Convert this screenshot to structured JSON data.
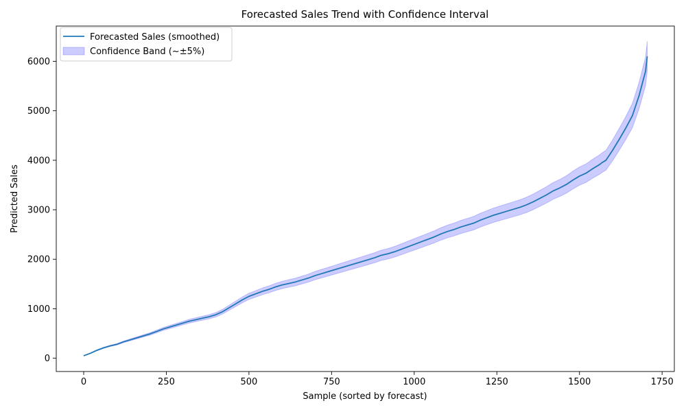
{
  "chart_data": {
    "type": "line",
    "title": "Forecasted Sales Trend with Confidence Interval",
    "xlabel": "Sample (sorted by forecast)",
    "ylabel": "Predicted Sales",
    "xlim": [
      -83,
      1787
    ],
    "ylim": [
      -268,
      6712
    ],
    "xticks": [
      0,
      250,
      500,
      750,
      1000,
      1250,
      1500,
      1750
    ],
    "yticks": [
      0,
      1000,
      2000,
      3000,
      4000,
      5000,
      6000
    ],
    "xtick_labels": [
      "0",
      "250",
      "500",
      "750",
      "1000",
      "1250",
      "1500",
      "1750"
    ],
    "ytick_labels": [
      "0",
      "1000",
      "2000",
      "3000",
      "4000",
      "5000",
      "6000"
    ],
    "grid": false,
    "legend_position": "upper-left",
    "band_relative_halfwidth": 0.05,
    "series": [
      {
        "name": "Forecasted Sales (smoothed)",
        "role": "line",
        "color": "#1f77b4",
        "x": [
          0,
          20,
          40,
          60,
          80,
          100,
          120,
          140,
          160,
          180,
          200,
          220,
          240,
          260,
          280,
          300,
          320,
          340,
          360,
          380,
          400,
          420,
          440,
          460,
          480,
          500,
          520,
          540,
          560,
          580,
          600,
          620,
          640,
          660,
          680,
          700,
          720,
          740,
          760,
          780,
          800,
          820,
          840,
          860,
          880,
          900,
          920,
          940,
          960,
          980,
          1000,
          1020,
          1040,
          1060,
          1080,
          1100,
          1120,
          1140,
          1160,
          1180,
          1200,
          1220,
          1240,
          1260,
          1280,
          1300,
          1320,
          1340,
          1360,
          1380,
          1400,
          1420,
          1440,
          1460,
          1480,
          1500,
          1520,
          1540,
          1560,
          1570,
          1580,
          1600,
          1620,
          1640,
          1660,
          1670,
          1680,
          1690,
          1700,
          1705
        ],
        "y": [
          50,
          100,
          160,
          210,
          250,
          280,
          330,
          370,
          410,
          450,
          490,
          540,
          590,
          630,
          670,
          710,
          750,
          780,
          810,
          840,
          880,
          940,
          1020,
          1100,
          1180,
          1250,
          1300,
          1350,
          1390,
          1440,
          1480,
          1510,
          1540,
          1580,
          1620,
          1670,
          1710,
          1750,
          1790,
          1830,
          1870,
          1910,
          1950,
          1990,
          2030,
          2080,
          2110,
          2150,
          2200,
          2250,
          2300,
          2350,
          2400,
          2450,
          2510,
          2560,
          2600,
          2650,
          2690,
          2730,
          2790,
          2840,
          2890,
          2930,
          2970,
          3010,
          3050,
          3100,
          3160,
          3230,
          3300,
          3380,
          3440,
          3510,
          3600,
          3680,
          3740,
          3830,
          3910,
          3960,
          4000,
          4200,
          4420,
          4650,
          4900,
          5100,
          5300,
          5550,
          5800,
          6100
        ]
      },
      {
        "name": "Confidence Band (~±5%)",
        "role": "band",
        "color": "#0000ff",
        "opacity": 0.2
      }
    ]
  }
}
